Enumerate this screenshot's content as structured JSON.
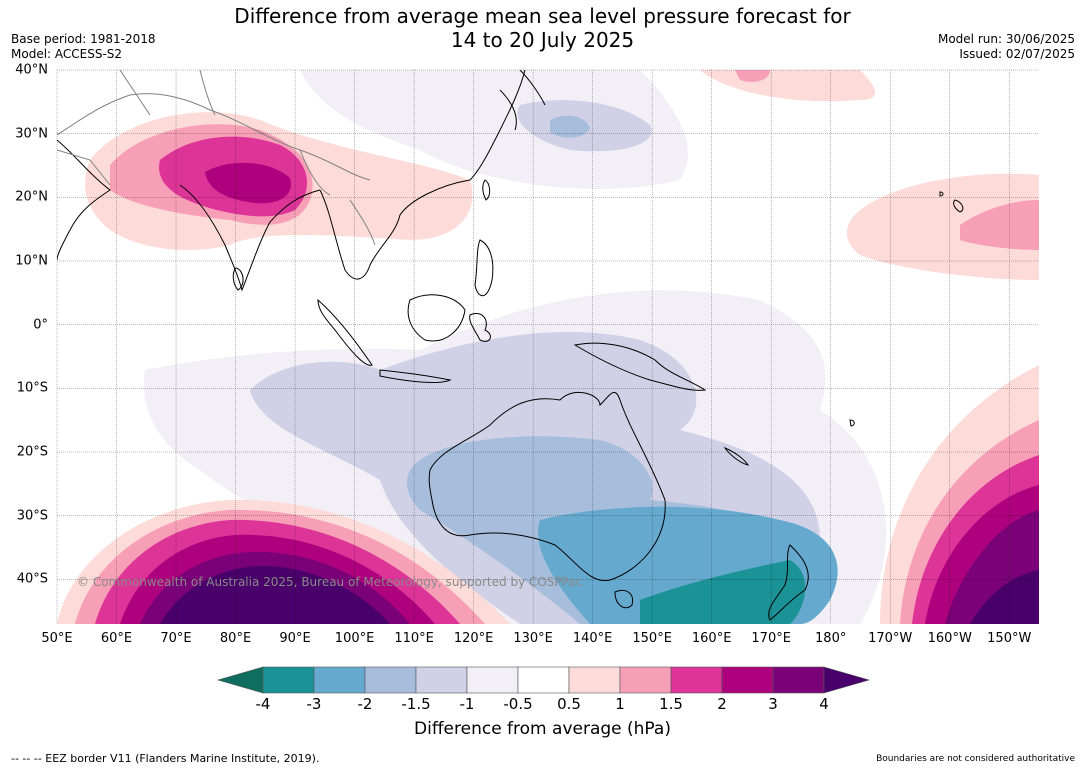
{
  "header": {
    "title_line1": "Difference from average mean sea level pressure forecast for",
    "title_line2": "14 to 20 July 2025",
    "base_period": "Base period: 1981-2018",
    "model": "Model: ACCESS-S2",
    "model_run": "Model run: 30/06/2025",
    "issued": "Issued: 02/07/2025"
  },
  "map": {
    "lon_ticks": [
      {
        "lon": 50,
        "label": "50°E"
      },
      {
        "lon": 60,
        "label": "60°E"
      },
      {
        "lon": 70,
        "label": "70°E"
      },
      {
        "lon": 80,
        "label": "80°E"
      },
      {
        "lon": 90,
        "label": "90°E"
      },
      {
        "lon": 100,
        "label": "100°E"
      },
      {
        "lon": 110,
        "label": "110°E"
      },
      {
        "lon": 120,
        "label": "120°E"
      },
      {
        "lon": 130,
        "label": "130°E"
      },
      {
        "lon": 140,
        "label": "140°E"
      },
      {
        "lon": 150,
        "label": "150°E"
      },
      {
        "lon": 160,
        "label": "160°E"
      },
      {
        "lon": 170,
        "label": "170°E"
      },
      {
        "lon": 180,
        "label": "180°"
      },
      {
        "lon": 190,
        "label": "170°W"
      },
      {
        "lon": 200,
        "label": "160°W"
      },
      {
        "lon": 210,
        "label": "150°W"
      }
    ],
    "lat_ticks": [
      {
        "lat": 40,
        "label": "40°N"
      },
      {
        "lat": 30,
        "label": "30°N"
      },
      {
        "lat": 20,
        "label": "20°N"
      },
      {
        "lat": 10,
        "label": "10°N"
      },
      {
        "lat": 0,
        "label": "0°"
      },
      {
        "lat": -10,
        "label": "10°S"
      },
      {
        "lat": -20,
        "label": "20°S"
      },
      {
        "lat": -30,
        "label": "30°S"
      },
      {
        "lat": -40,
        "label": "40°S"
      }
    ],
    "lon_range": [
      50,
      215
    ],
    "lat_range": [
      -47,
      40
    ],
    "gridlines": true,
    "copyright": "© Commonwealth of Australia 2025, Bureau of Meteorology, supported by COSPPac"
  },
  "colorbar": {
    "boundaries": [
      "-4",
      "-3",
      "-2",
      "-1.5",
      "-1",
      "-0.5",
      "0.5",
      "1",
      "1.5",
      "2",
      "3",
      "4"
    ],
    "colors": [
      "#1b9296",
      "#66a9cf",
      "#a6bddb",
      "#d0d1e6",
      "#f2eff6",
      "#ffffff",
      "#fddbd8",
      "#f89fb8",
      "#dd3497",
      "#ae017e",
      "#7a0177"
    ],
    "under_color": "#0f6e60",
    "over_color": "#49006a",
    "title": "Difference from average (hPa)"
  },
  "footer": {
    "eez_legend": "--  --  -- EEZ border V11 (Flanders Marine Institute, 2019).",
    "disclaimer": "Boundaries are not considered authoritative"
  }
}
